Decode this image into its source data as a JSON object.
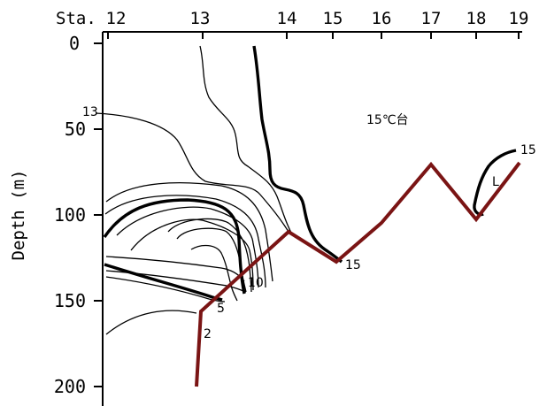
{
  "figure": {
    "x_axis": {
      "prefix": "Sta.",
      "ticks": [
        "12",
        "13",
        "14",
        "15",
        "16",
        "17",
        "18",
        "19"
      ]
    },
    "y_axis": {
      "label": "Depth (m)",
      "ticks": [
        "0",
        "50",
        "100",
        "150",
        "200"
      ]
    },
    "annotation": "15℃台",
    "contour_labels": {
      "c13": "13",
      "c15_right": "15",
      "c15_mid": "15",
      "c10": "10",
      "c5": "5",
      "c2": "2",
      "low": "L"
    },
    "colors": {
      "bottom_line": "#7a1414",
      "contour": "#000000"
    }
  }
}
